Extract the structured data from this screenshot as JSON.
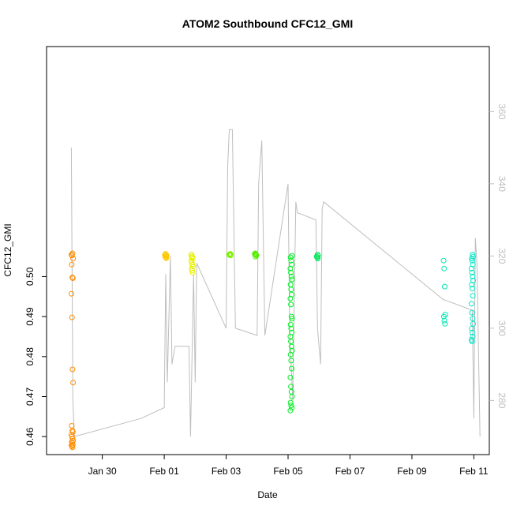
{
  "chart_data": {
    "type": "scatter",
    "title": "ATOM2 Southbound CFC12_GMI",
    "xlabel": "Date",
    "ylabel": "CFC12_GMI",
    "x_tick_labels": [
      "Jan 30",
      "Feb 01",
      "Feb 03",
      "Feb 05",
      "Feb 07",
      "Feb 09",
      "Feb 11"
    ],
    "x_tick_days": [
      30,
      32,
      34,
      36,
      38,
      40,
      42
    ],
    "xlim_days": [
      28.2,
      42.5
    ],
    "y_ticks": [
      "0.46",
      "0.47",
      "0.48",
      "0.49",
      "0.50"
    ],
    "y_tick_values": [
      0.46,
      0.47,
      0.48,
      0.49,
      0.5
    ],
    "ylim": [
      0.4555,
      0.5575
    ],
    "right_axis_ticks": [
      "280",
      "300",
      "320",
      "340",
      "360"
    ],
    "right_axis_values": [
      280,
      300,
      320,
      340,
      360
    ],
    "right_ylim": [
      265,
      378
    ],
    "point_clusters": [
      {
        "day": 29.03,
        "color": "#FF8C00",
        "values": [
          0.5055,
          0.5053,
          0.5058,
          0.5045,
          0.503,
          0.4998,
          0.4996,
          0.4957,
          0.4898,
          0.4768,
          0.4735,
          0.4627,
          0.4615,
          0.4612,
          0.4605,
          0.46,
          0.4595,
          0.459,
          0.4587,
          0.4584,
          0.458,
          0.4578,
          0.4576,
          0.4573
        ]
      },
      {
        "day": 32.05,
        "color": "#FFC800",
        "values": [
          0.5055,
          0.5052,
          0.505,
          0.5048,
          0.5046,
          0.5053,
          0.5057
        ]
      },
      {
        "day": 32.9,
        "color": "#E6F000",
        "values": [
          0.5055,
          0.505,
          0.5045,
          0.504,
          0.5035,
          0.503,
          0.5025,
          0.502,
          0.5015,
          0.501,
          0.5055,
          0.5048
        ]
      },
      {
        "day": 34.12,
        "color": "#7CF000",
        "values": [
          0.5057,
          0.5055,
          0.5054,
          0.5056,
          0.5053
        ]
      },
      {
        "day": 34.95,
        "color": "#55EE00",
        "values": [
          0.5058,
          0.5055,
          0.5053,
          0.5056,
          0.505,
          0.5054,
          0.5057
        ]
      },
      {
        "day": 36.1,
        "color": "#00EE22",
        "values": [
          0.5052,
          0.5048,
          0.504,
          0.503,
          0.502,
          0.501,
          0.5,
          0.4993,
          0.498,
          0.4968,
          0.4955,
          0.4945,
          0.493,
          0.49,
          0.4895,
          0.488,
          0.487,
          0.486,
          0.485,
          0.4838,
          0.4825,
          0.4815,
          0.4805,
          0.479,
          0.477,
          0.4748,
          0.4725,
          0.4712,
          0.47,
          0.4685,
          0.4678,
          0.4672,
          0.4665
        ]
      },
      {
        "day": 36.95,
        "color": "#00E85A",
        "values": [
          0.5055,
          0.5052,
          0.505,
          0.5048,
          0.5045
        ]
      },
      {
        "day": 41.05,
        "color": "#00E8B0",
        "values": [
          0.504,
          0.502,
          0.4975,
          0.4905,
          0.49,
          0.489,
          0.4882
        ]
      },
      {
        "day": 41.95,
        "color": "#00E8C8",
        "values": [
          0.5055,
          0.505,
          0.5045,
          0.504,
          0.503,
          0.502,
          0.501,
          0.5,
          0.499,
          0.498,
          0.497,
          0.4952,
          0.4932,
          0.491,
          0.4895,
          0.4882,
          0.487,
          0.486,
          0.485,
          0.4842,
          0.4838
        ]
      }
    ],
    "altitude_line": {
      "color": "#bebebe",
      "points": [
        [
          29.0,
          350
        ],
        [
          29.05,
          280
        ],
        [
          29.1,
          270
        ],
        [
          31.25,
          275
        ],
        [
          32.0,
          278
        ],
        [
          32.05,
          315
        ],
        [
          32.1,
          285
        ],
        [
          32.2,
          320
        ],
        [
          32.25,
          290
        ],
        [
          32.35,
          295
        ],
        [
          32.8,
          295
        ],
        [
          32.85,
          270
        ],
        [
          32.95,
          315
        ],
        [
          33.0,
          285
        ],
        [
          33.05,
          318
        ],
        [
          34.0,
          300
        ],
        [
          34.05,
          345
        ],
        [
          34.1,
          355
        ],
        [
          34.2,
          355
        ],
        [
          34.3,
          300
        ],
        [
          35.0,
          298
        ],
        [
          35.05,
          340
        ],
        [
          35.15,
          352
        ],
        [
          35.25,
          298
        ],
        [
          36.0,
          340
        ],
        [
          36.05,
          300
        ],
        [
          36.15,
          280
        ],
        [
          36.25,
          335
        ],
        [
          36.3,
          332
        ],
        [
          36.9,
          330
        ],
        [
          36.95,
          300
        ],
        [
          37.05,
          290
        ],
        [
          37.1,
          333
        ],
        [
          37.15,
          335
        ],
        [
          41.0,
          308
        ],
        [
          41.95,
          305
        ],
        [
          42.0,
          275
        ],
        [
          42.05,
          325
        ],
        [
          42.1,
          318
        ],
        [
          42.2,
          270
        ]
      ]
    }
  }
}
